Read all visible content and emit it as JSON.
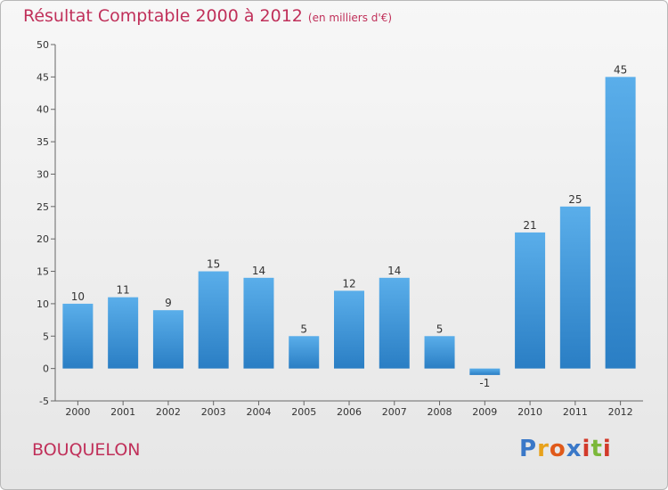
{
  "chart_data": {
    "type": "bar",
    "title": "Résultat Comptable 2000 à 2012",
    "subtitle": "(en milliers d'€)",
    "categories": [
      "2000",
      "2001",
      "2002",
      "2003",
      "2004",
      "2005",
      "2006",
      "2007",
      "2008",
      "2009",
      "2010",
      "2011",
      "2012"
    ],
    "values": [
      10,
      11,
      9,
      15,
      14,
      5,
      12,
      14,
      5,
      -1,
      21,
      25,
      45
    ],
    "ylim": [
      -5,
      50
    ],
    "yticks": [
      -5,
      0,
      5,
      10,
      15,
      20,
      25,
      30,
      35,
      40,
      45,
      50
    ],
    "grid": false,
    "xlabel": "",
    "ylabel": "",
    "bar_color_top": "#5aaeea",
    "bar_color_bottom": "#2a7ec4"
  },
  "commune": "BOUQUELON",
  "logo": {
    "letters": [
      "P",
      "r",
      "o",
      "x",
      "i",
      "t",
      "i"
    ],
    "colors": [
      "#3a78c8",
      "#e8a21c",
      "#e05a1a",
      "#3a78c8",
      "#d23a2a",
      "#7cb83a",
      "#d23a2a"
    ]
  },
  "colors": {
    "accent": "#c0305a"
  }
}
